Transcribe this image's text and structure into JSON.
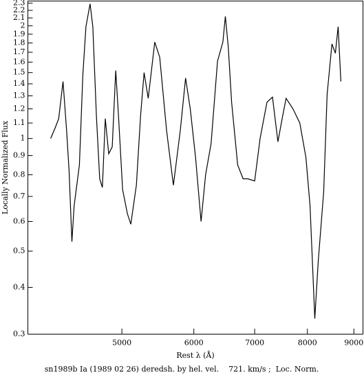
{
  "chart_data": {
    "type": "line",
    "title": "sn1989b Ia (1989 02 26) deredsh. by hel. vel.    721. km/s ;  Loc. Norm.",
    "x_label": "Rest λ (Å)",
    "y_label": "Locally Normalized Flux",
    "x_log": true,
    "y_log": true,
    "xlim": [
      3940,
      9210
    ],
    "ylim": [
      0.3,
      2.33
    ],
    "xticks": [
      5000,
      6000,
      7000,
      8000,
      9000
    ],
    "yticks": [
      0.3,
      0.4,
      0.5,
      0.6,
      0.7,
      0.8,
      0.9,
      1,
      1.1,
      1.2,
      1.3,
      1.4,
      1.5,
      1.6,
      1.7,
      1.8,
      1.9,
      2,
      2.1,
      2.2,
      2.3
    ],
    "color": "#000000",
    "x": [
      4174,
      4224,
      4260,
      4307,
      4346,
      4374,
      4405,
      4430,
      4490,
      4529,
      4565,
      4613,
      4645,
      4687,
      4727,
      4759,
      4794,
      4836,
      4879,
      4923,
      4957,
      5009,
      5070,
      5114,
      5187,
      5242,
      5289,
      5345,
      5434,
      5503,
      5600,
      5697,
      5797,
      5876,
      5946,
      6026,
      6111,
      6181,
      6268,
      6371,
      6458,
      6499,
      6547,
      6603,
      6705,
      6797,
      6880,
      7000,
      7097,
      7222,
      7323,
      7425,
      7515,
      7580,
      7713,
      7848,
      7970,
      8054,
      8152,
      8223,
      8337,
      8410,
      8513,
      8588,
      8648,
      8708
    ],
    "values": [
      1.0,
      1.07,
      1.13,
      1.42,
      1.05,
      0.82,
      0.53,
      0.66,
      0.85,
      1.48,
      1.99,
      2.29,
      1.99,
      1.15,
      0.78,
      0.74,
      1.13,
      0.91,
      0.95,
      1.52,
      1.15,
      0.73,
      0.63,
      0.59,
      0.75,
      1.15,
      1.5,
      1.28,
      1.81,
      1.65,
      1.05,
      0.75,
      1.05,
      1.45,
      1.2,
      0.89,
      0.6,
      0.8,
      0.97,
      1.61,
      1.81,
      2.12,
      1.75,
      1.25,
      0.85,
      0.78,
      0.78,
      0.77,
      1.0,
      1.25,
      1.29,
      0.98,
      1.15,
      1.28,
      1.2,
      1.1,
      0.89,
      0.66,
      0.33,
      0.47,
      0.72,
      1.31,
      1.79,
      1.69,
      1.99,
      1.42
    ]
  }
}
